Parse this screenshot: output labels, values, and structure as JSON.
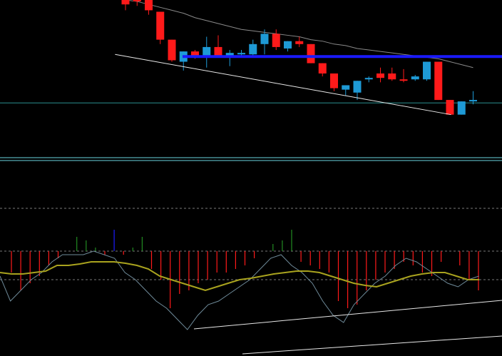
{
  "colors": {
    "background": "#000000",
    "bull_candle": "#1e9ad6",
    "bear_candle": "#ff1a1a",
    "wick": "#8fb3c8",
    "resistance_line": "#1a1aff",
    "trendline": "#e8e8e8",
    "horizontal_level": "#2a8f8f",
    "panel_separator": "#6ad6e0",
    "moving_average": "#8a8a8a",
    "histogram_down": "#ff1a1a",
    "histogram_up": "#228b22",
    "histogram_peak": "#1a1aff",
    "signal_line": "#a9a31e",
    "oscillator_line": "#6f8b9a",
    "dotted_level": "#7a7a7a"
  },
  "chart_data": [
    {
      "type": "candlestick",
      "panel": "price",
      "title": "",
      "grid": false,
      "ylim": [
        0,
        100
      ],
      "candles": [
        {
          "o": 100,
          "h": 100,
          "l": 93,
          "c": 97,
          "dir": "down"
        },
        {
          "o": 100,
          "h": 100,
          "l": 96,
          "c": 100,
          "dir": "down"
        },
        {
          "o": 100,
          "h": 100,
          "l": 90,
          "c": 93,
          "dir": "down"
        },
        {
          "o": 92,
          "h": 92,
          "l": 70,
          "c": 73,
          "dir": "down"
        },
        {
          "o": 73,
          "h": 73,
          "l": 58,
          "c": 59,
          "dir": "down"
        },
        {
          "o": 58,
          "h": 65,
          "l": 52,
          "c": 65,
          "dir": "up"
        },
        {
          "o": 65,
          "h": 66,
          "l": 60,
          "c": 62,
          "dir": "down"
        },
        {
          "o": 62,
          "h": 75,
          "l": 54,
          "c": 68,
          "dir": "up"
        },
        {
          "o": 68,
          "h": 76,
          "l": 61,
          "c": 62,
          "dir": "down"
        },
        {
          "o": 61,
          "h": 66,
          "l": 55,
          "c": 64,
          "dir": "up"
        },
        {
          "o": 64,
          "h": 66,
          "l": 62,
          "c": 63,
          "dir": "up"
        },
        {
          "o": 63,
          "h": 73,
          "l": 61,
          "c": 70,
          "dir": "up"
        },
        {
          "o": 70,
          "h": 80,
          "l": 63,
          "c": 77,
          "dir": "up"
        },
        {
          "o": 77,
          "h": 80,
          "l": 66,
          "c": 68,
          "dir": "down"
        },
        {
          "o": 67,
          "h": 72,
          "l": 65,
          "c": 72,
          "dir": "up"
        },
        {
          "o": 72,
          "h": 75,
          "l": 68,
          "c": 70,
          "dir": "down"
        },
        {
          "o": 70,
          "h": 70,
          "l": 57,
          "c": 57,
          "dir": "down"
        },
        {
          "o": 57,
          "h": 57,
          "l": 48,
          "c": 50,
          "dir": "down"
        },
        {
          "o": 50,
          "h": 50,
          "l": 38,
          "c": 40,
          "dir": "down"
        },
        {
          "o": 39,
          "h": 42,
          "l": 35,
          "c": 42,
          "dir": "up"
        },
        {
          "o": 37,
          "h": 45,
          "l": 32,
          "c": 45,
          "dir": "up"
        },
        {
          "o": 46,
          "h": 48,
          "l": 44,
          "c": 47,
          "dir": "up"
        },
        {
          "o": 47,
          "h": 54,
          "l": 44,
          "c": 50,
          "dir": "down"
        },
        {
          "o": 50,
          "h": 54,
          "l": 45,
          "c": 46,
          "dir": "down"
        },
        {
          "o": 46,
          "h": 53,
          "l": 44,
          "c": 46,
          "dir": "down"
        },
        {
          "o": 46,
          "h": 49,
          "l": 45,
          "c": 48,
          "dir": "up"
        },
        {
          "o": 46,
          "h": 58,
          "l": 45,
          "c": 58,
          "dir": "up"
        },
        {
          "o": 58,
          "h": 58,
          "l": 32,
          "c": 32,
          "dir": "down"
        },
        {
          "o": 32,
          "h": 32,
          "l": 22,
          "c": 22,
          "dir": "down"
        },
        {
          "o": 22,
          "h": 31,
          "l": 22,
          "c": 31,
          "dir": "up"
        },
        {
          "o": 31,
          "h": 38,
          "l": 29,
          "c": 32,
          "dir": "up"
        }
      ],
      "moving_average": [
        100,
        99,
        97,
        95,
        93,
        91,
        88,
        86,
        84,
        82,
        80,
        79,
        78,
        77,
        76,
        75,
        73,
        72,
        70,
        69,
        67,
        66,
        65,
        64,
        63,
        62,
        61,
        60,
        58,
        56,
        54
      ],
      "resistance_level": 61.5,
      "horizontal_level": 30,
      "trendline": {
        "from": [
          -0.9,
          63
        ],
        "to": [
          28.1,
          22
        ]
      }
    },
    {
      "type": "bar",
      "panel": "oscillator",
      "title": "",
      "grid": false,
      "ylim": [
        -100,
        100
      ],
      "dotted_levels": [
        80,
        20,
        -20
      ],
      "histogram": [
        -30,
        -55,
        -45,
        -35,
        -20,
        -10,
        0,
        20,
        15,
        5,
        -5,
        30,
        -5,
        5,
        20,
        -25,
        -40,
        -80,
        -60,
        -55,
        -45,
        -40,
        -30,
        -30,
        -25,
        -20,
        -10,
        0,
        10,
        15,
        30,
        -15,
        -20,
        -25,
        -30,
        -70,
        -80,
        -75,
        -55,
        -40,
        -30,
        -25,
        -15,
        -20,
        -30,
        -35,
        -15,
        0,
        -20,
        -40,
        -55
      ],
      "oscillator": [
        -15,
        -50,
        -35,
        -20,
        -10,
        5,
        15,
        15,
        15,
        20,
        15,
        10,
        -10,
        -20,
        -35,
        -50,
        -60,
        -75,
        -90,
        -70,
        -55,
        -50,
        -40,
        -30,
        -20,
        -5,
        10,
        15,
        0,
        -10,
        -25,
        -50,
        -70,
        -80,
        -55,
        -40,
        -25,
        -15,
        0,
        10,
        5,
        -5,
        -15,
        -25,
        -30,
        -20,
        -15
      ],
      "signal": [
        -10,
        -12,
        -12,
        -10,
        -8,
        0,
        0,
        2,
        5,
        5,
        5,
        3,
        0,
        -5,
        -15,
        -20,
        -25,
        -30,
        -35,
        -30,
        -25,
        -20,
        -18,
        -15,
        -12,
        -10,
        -8,
        -8,
        -10,
        -15,
        -20,
        -25,
        -28,
        -30,
        -25,
        -20,
        -15,
        -12,
        -10,
        -10,
        -15,
        -20,
        -20
      ]
    }
  ]
}
